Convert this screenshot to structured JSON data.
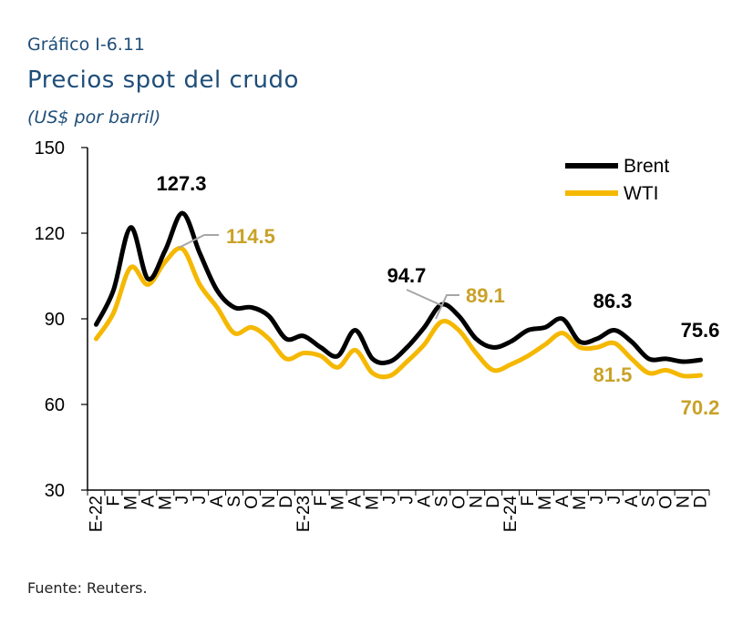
{
  "header": {
    "code": "Gráfico I-6.11",
    "title": "Precios spot del crudo",
    "units": "(US$ por barril)"
  },
  "footer": {
    "source": "Fuente: Reuters."
  },
  "colors": {
    "brent": "#000000",
    "wti": "#f5b800",
    "label_wti": "#c9a227",
    "connector": "#a6a6a6"
  },
  "chart_data": {
    "type": "line",
    "x": [
      "E-22",
      "F",
      "M",
      "A",
      "M",
      "J",
      "J",
      "A",
      "S",
      "O",
      "N",
      "D",
      "E-23",
      "F",
      "M",
      "A",
      "M",
      "J",
      "J",
      "A",
      "S",
      "O",
      "N",
      "D",
      "E-24",
      "F",
      "M",
      "A",
      "M",
      "J",
      "J",
      "A",
      "S",
      "O",
      "N",
      "D"
    ],
    "ylim": [
      30,
      150
    ],
    "yticks": [
      30,
      60,
      90,
      120,
      150
    ],
    "grid": false,
    "legend_position": "top-right",
    "series": [
      {
        "name": "Brent",
        "values": [
          88,
          100,
          122,
          104,
          114,
          127,
          113,
          100,
          94,
          94,
          91,
          83,
          84,
          80,
          77,
          86,
          76,
          75,
          80,
          87,
          95,
          91,
          83,
          80,
          82,
          86,
          87,
          90,
          82,
          83,
          86,
          82,
          76,
          76,
          75,
          75.6
        ]
      },
      {
        "name": "WTI",
        "values": [
          83,
          92,
          108,
          102,
          110,
          114.5,
          102,
          94,
          85,
          87,
          83,
          76,
          78,
          77,
          73,
          79,
          71,
          70,
          75,
          81,
          89,
          86,
          78,
          72,
          74,
          77,
          81,
          85,
          80,
          80,
          81.5,
          76,
          71,
          72,
          70,
          70.2
        ]
      }
    ],
    "annotations": [
      {
        "text": "127.3",
        "series": "Brent"
      },
      {
        "text": "114.5",
        "series": "WTI"
      },
      {
        "text": "94.7",
        "series": "Brent"
      },
      {
        "text": "89.1",
        "series": "WTI"
      },
      {
        "text": "86.3",
        "series": "Brent"
      },
      {
        "text": "81.5",
        "series": "WTI"
      },
      {
        "text": "75.6",
        "series": "Brent"
      },
      {
        "text": "70.2",
        "series": "WTI"
      }
    ]
  }
}
